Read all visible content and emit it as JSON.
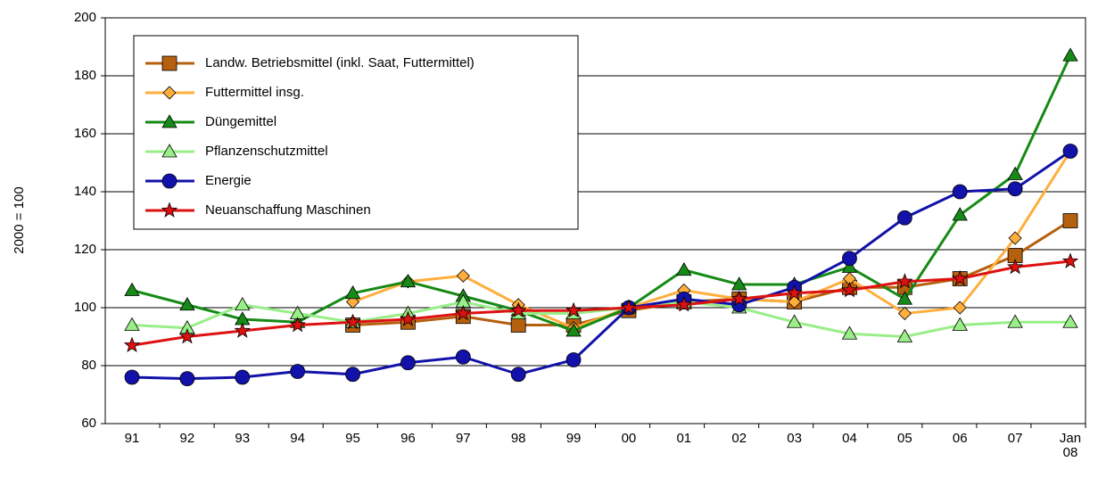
{
  "chart_data": {
    "type": "line",
    "ylabel": "2000 = 100",
    "categories": [
      "91",
      "92",
      "93",
      "94",
      "95",
      "96",
      "97",
      "98",
      "99",
      "00",
      "01",
      "02",
      "03",
      "04",
      "05",
      "06",
      "07",
      "Jan 08"
    ],
    "ylim": [
      60,
      200
    ],
    "yticks": [
      60,
      80,
      100,
      120,
      140,
      160,
      180,
      200
    ],
    "grid": true,
    "series": [
      {
        "name": "Landw. Betriebsmittel (inkl. Saat, Futtermittel)",
        "color": "#b5600f",
        "marker": "square",
        "values": [
          null,
          null,
          null,
          null,
          94,
          95,
          97,
          94,
          94,
          99,
          102,
          103,
          102,
          107,
          107,
          110,
          118,
          130
        ]
      },
      {
        "name": "Futtermittel insg.",
        "color": "#ffae3c",
        "marker": "diamond",
        "values": [
          null,
          null,
          null,
          null,
          102,
          109,
          111,
          101,
          93,
          100,
          106,
          103,
          102,
          110,
          98,
          100,
          124,
          154
        ]
      },
      {
        "name": "Düngemittel",
        "color": "#168a16",
        "marker": "triangle",
        "values": [
          106,
          101,
          96,
          95,
          105,
          109,
          104,
          99,
          92,
          100,
          113,
          108,
          108,
          114,
          103,
          132,
          146,
          187
        ]
      },
      {
        "name": "Pflanzenschutzmittel",
        "color": "#99ee88",
        "marker": "triangle",
        "values": [
          94,
          93,
          101,
          98,
          95,
          98,
          102,
          98,
          98,
          100,
          102,
          100,
          95,
          91,
          90,
          94,
          95,
          95
        ]
      },
      {
        "name": "Energie",
        "color": "#1212aa",
        "marker": "circle",
        "values": [
          76,
          75.5,
          76,
          78,
          77,
          81,
          83,
          77,
          82,
          100,
          103,
          101,
          107,
          117,
          131,
          140,
          141,
          154
        ]
      },
      {
        "name": "Neuanschaffung Maschinen",
        "color": "#dd1111",
        "marker": "star",
        "values": [
          87,
          90,
          92,
          94,
          95,
          96,
          98,
          99,
          99,
          100,
          101,
          103,
          105,
          106,
          109,
          110,
          114,
          116
        ]
      }
    ]
  }
}
